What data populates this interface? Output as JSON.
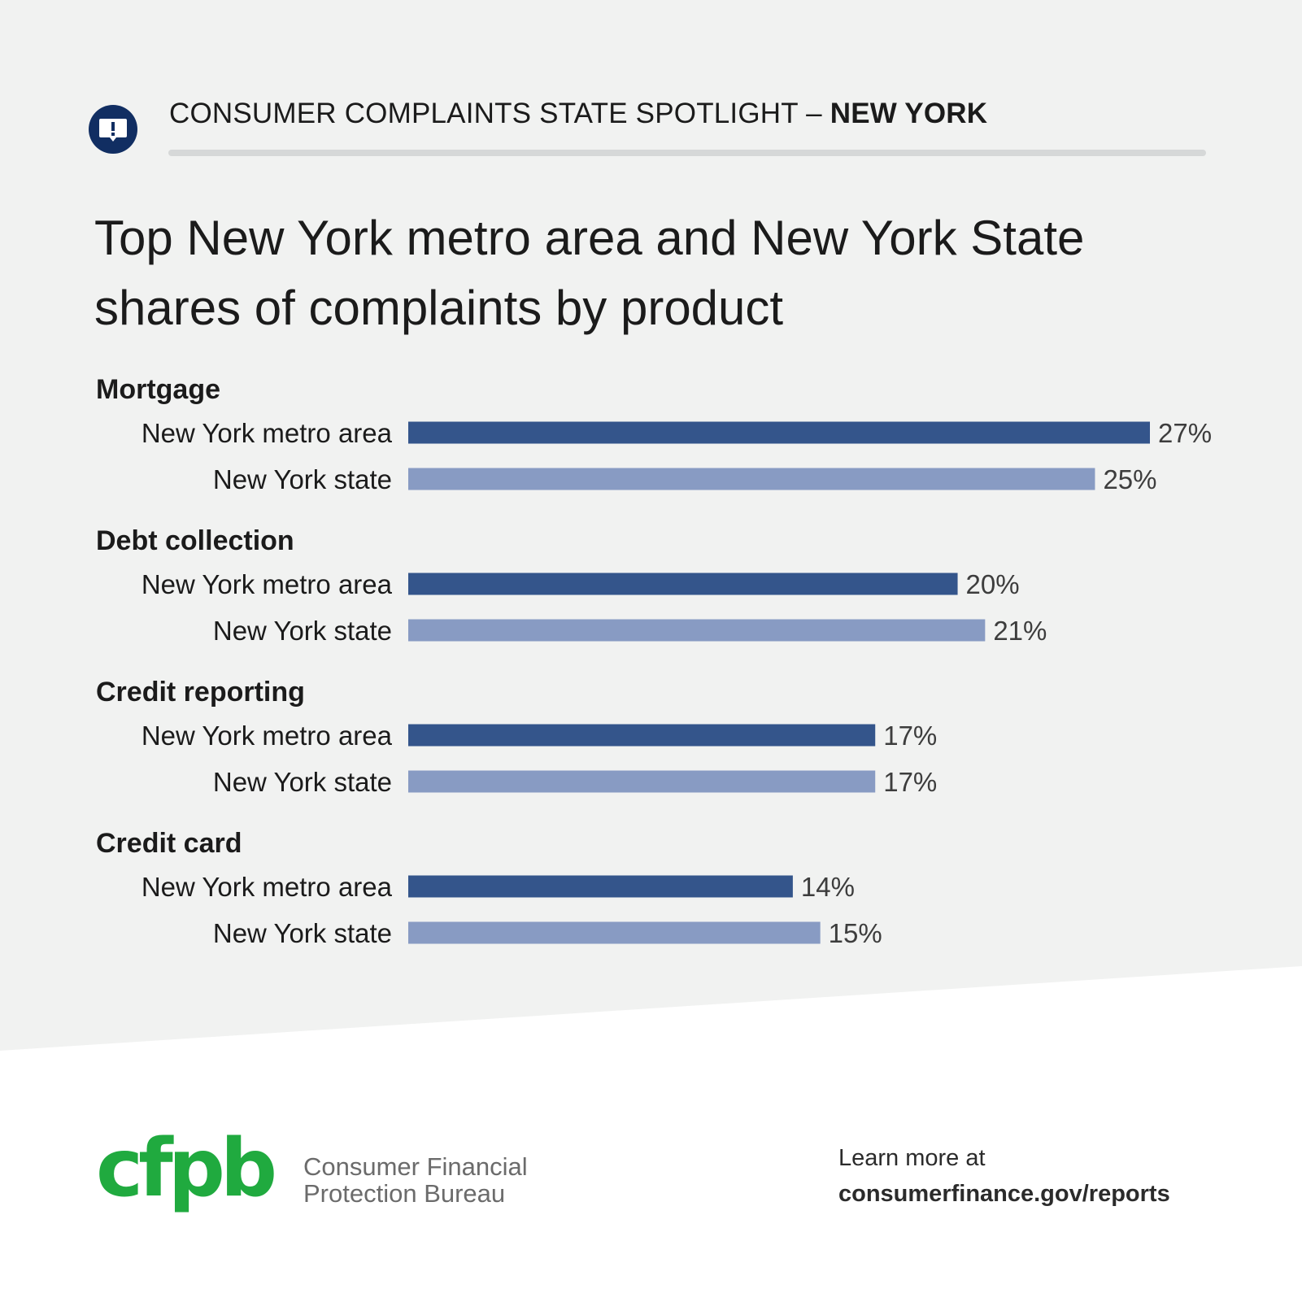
{
  "header": {
    "prefix": "CONSUMER COMPLAINTS STATE SPOTLIGHT – ",
    "state": "NEW YORK",
    "icon": "alert-speech-bubble-icon"
  },
  "colors": {
    "background": "#f1f2f1",
    "metro": "#34558b",
    "state": "#889bc3",
    "icon_circle": "#112e62",
    "logo_green_dark": "#20aa3f",
    "logo_green_light": "#addc91"
  },
  "chart_data": {
    "type": "bar",
    "orientation": "horizontal",
    "title": "Top New York metro area and New York State shares of complaints by product",
    "categories": [
      "Mortgage",
      "Debt collection",
      "Credit reporting",
      "Credit card"
    ],
    "series": [
      {
        "name": "New York metro area",
        "values": [
          27,
          20,
          17,
          14
        ]
      },
      {
        "name": "New York state",
        "values": [
          25,
          21,
          17,
          15
        ]
      }
    ],
    "unit": "%",
    "xlim": [
      0,
      27
    ],
    "grid": false,
    "legend": "none"
  },
  "footer": {
    "logo_text": "cfpb",
    "org_line1": "Consumer Financial",
    "org_line2": "Protection Bureau",
    "learn_more": "Learn more at",
    "url": "consumerfinance.gov/reports"
  }
}
